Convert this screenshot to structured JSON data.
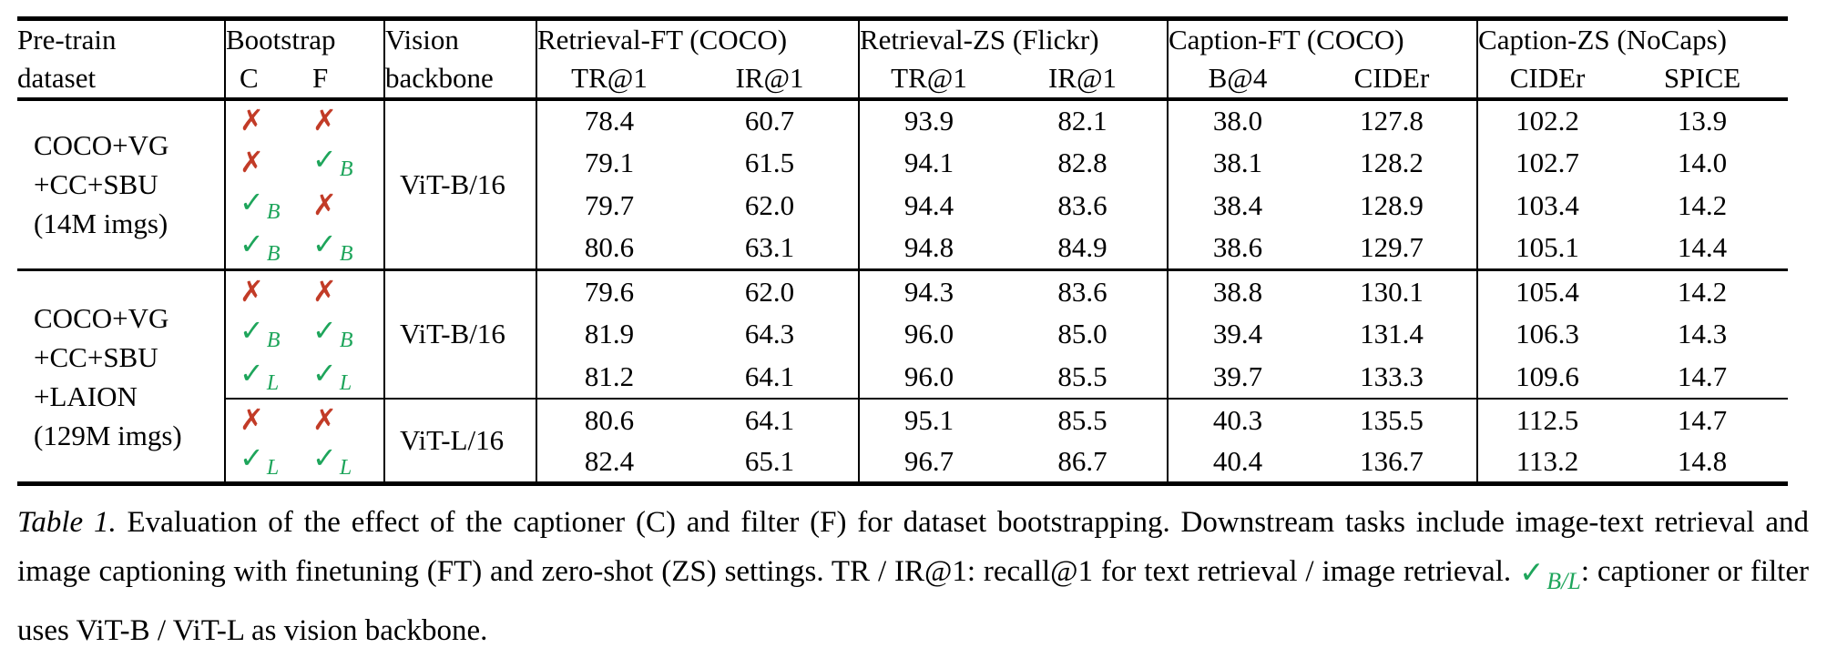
{
  "colors": {
    "check_green": "#1ea55b",
    "cross_red": "#c23b27",
    "text": "#000000",
    "background": "#ffffff"
  },
  "glyphs": {
    "check": "✓",
    "cross": "✗"
  },
  "header": {
    "pretrain_line1": "Pre-train",
    "pretrain_line2": "dataset",
    "bootstrap": "Bootstrap",
    "c_label": "C",
    "f_label": "F",
    "vision_line1": "Vision",
    "vision_line2": "backbone",
    "metric_groups": [
      {
        "label": "Retrieval-FT (COCO)",
        "cols": [
          "TR@1",
          "IR@1"
        ]
      },
      {
        "label": "Retrieval-ZS (Flickr)",
        "cols": [
          "TR@1",
          "IR@1"
        ]
      },
      {
        "label": "Caption-FT (COCO)",
        "cols": [
          "B@4",
          "CIDEr"
        ]
      },
      {
        "label": "Caption-ZS (NoCaps)",
        "cols": [
          "CIDEr",
          "SPICE"
        ]
      }
    ]
  },
  "groups": [
    {
      "dataset_lines": [
        "COCO+VG",
        "+CC+SBU",
        "(14M imgs)"
      ],
      "subgroups": [
        {
          "backbone": "ViT-B/16",
          "rows": [
            {
              "c": "x",
              "f": "x",
              "values": [
                "78.4",
                "60.7",
                "93.9",
                "82.1",
                "38.0",
                "127.8",
                "102.2",
                "13.9"
              ]
            },
            {
              "c": "x",
              "f": "vB",
              "values": [
                "79.1",
                "61.5",
                "94.1",
                "82.8",
                "38.1",
                "128.2",
                "102.7",
                "14.0"
              ]
            },
            {
              "c": "vB",
              "f": "x",
              "values": [
                "79.7",
                "62.0",
                "94.4",
                "83.6",
                "38.4",
                "128.9",
                "103.4",
                "14.2"
              ]
            },
            {
              "c": "vB",
              "f": "vB",
              "values": [
                "80.6",
                "63.1",
                "94.8",
                "84.9",
                "38.6",
                "129.7",
                "105.1",
                "14.4"
              ]
            }
          ]
        }
      ]
    },
    {
      "dataset_lines": [
        "COCO+VG",
        "+CC+SBU",
        "+LAION",
        "(129M imgs)"
      ],
      "subgroups": [
        {
          "backbone": "ViT-B/16",
          "rows": [
            {
              "c": "x",
              "f": "x",
              "values": [
                "79.6",
                "62.0",
                "94.3",
                "83.6",
                "38.8",
                "130.1",
                "105.4",
                "14.2"
              ]
            },
            {
              "c": "vB",
              "f": "vB",
              "values": [
                "81.9",
                "64.3",
                "96.0",
                "85.0",
                "39.4",
                "131.4",
                "106.3",
                "14.3"
              ]
            },
            {
              "c": "vL",
              "f": "vL",
              "values": [
                "81.2",
                "64.1",
                "96.0",
                "85.5",
                "39.7",
                "133.3",
                "109.6",
                "14.7"
              ]
            }
          ]
        },
        {
          "backbone": "ViT-L/16",
          "rows": [
            {
              "c": "x",
              "f": "x",
              "values": [
                "80.6",
                "64.1",
                "95.1",
                "85.5",
                "40.3",
                "135.5",
                "112.5",
                "14.7"
              ]
            },
            {
              "c": "vL",
              "f": "vL",
              "values": [
                "82.4",
                "65.1",
                "96.7",
                "86.7",
                "40.4",
                "136.7",
                "113.2",
                "14.8"
              ]
            }
          ]
        }
      ]
    }
  ],
  "caption": {
    "label": "Table 1.",
    "text_before_mark": "Evaluation of the effect of the captioner (C) and filter (F) for dataset bootstrapping. Downstream tasks include image-text retrieval and image captioning with finetuning (FT) and zero-shot (ZS) settings. TR / IR@1: recall@1 for text retrieval / image retrieval. ",
    "mark_subscript": "B/L",
    "text_after_mark": ": captioner or filter uses ViT-B / ViT-L as vision backbone."
  }
}
